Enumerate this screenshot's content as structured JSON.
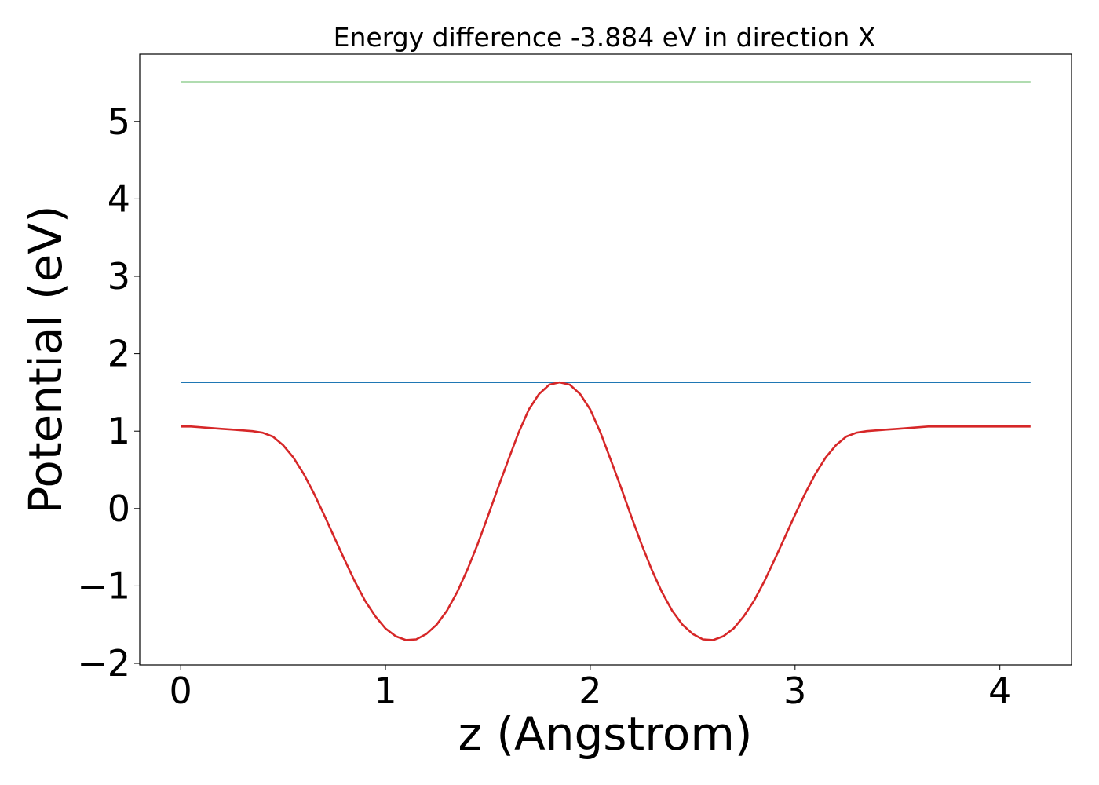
{
  "chart_data": {
    "type": "line",
    "title": "Energy difference -3.884 eV in direction X",
    "xlabel": "z (Angstrom)",
    "ylabel": "Potential (eV)",
    "xlim": [
      -0.2,
      4.35
    ],
    "ylim": [
      -2.02,
      5.87
    ],
    "x_ticks": [
      0,
      1,
      2,
      3,
      4
    ],
    "y_ticks": [
      -2,
      -1,
      0,
      1,
      2,
      3,
      4,
      5
    ],
    "x_tick_labels": [
      "0",
      "1",
      "2",
      "3",
      "4"
    ],
    "y_tick_labels": [
      "−2",
      "−1",
      "0",
      "1",
      "2",
      "3",
      "4",
      "5"
    ],
    "grid": false,
    "series": [
      {
        "color": "#2ca02c",
        "x": [
          0,
          4.15
        ],
        "y": [
          5.51,
          5.51
        ]
      },
      {
        "color": "#1f77b4",
        "x": [
          0,
          4.15
        ],
        "y": [
          1.63,
          1.63
        ]
      },
      {
        "color": "#d62728",
        "x": [
          0,
          0.05,
          0.1,
          0.15,
          0.2,
          0.25,
          0.3,
          0.35,
          0.4,
          0.45,
          0.5,
          0.55,
          0.6,
          0.65,
          0.7,
          0.75,
          0.8,
          0.85,
          0.9,
          0.95,
          1.0,
          1.05,
          1.1,
          1.15,
          1.2,
          1.25,
          1.3,
          1.35,
          1.4,
          1.45,
          1.5,
          1.55,
          1.6,
          1.65,
          1.7,
          1.75,
          1.8,
          1.85,
          1.9,
          1.95,
          2.0,
          2.05,
          2.1,
          2.15,
          2.2,
          2.25,
          2.3,
          2.35,
          2.4,
          2.45,
          2.5,
          2.55,
          2.6,
          2.65,
          2.7,
          2.75,
          2.8,
          2.85,
          2.9,
          2.95,
          3.0,
          3.05,
          3.1,
          3.15,
          3.2,
          3.25,
          3.3,
          3.35,
          3.4,
          3.45,
          3.5,
          3.55,
          3.6,
          3.65,
          3.7,
          3.75,
          3.8,
          3.85,
          3.9,
          3.95,
          4.0,
          4.05,
          4.1,
          4.15
        ],
        "y": [
          1.06,
          1.06,
          1.05,
          1.04,
          1.03,
          1.02,
          1.01,
          1.0,
          0.98,
          0.93,
          0.82,
          0.66,
          0.45,
          0.2,
          -0.08,
          -0.37,
          -0.66,
          -0.94,
          -1.19,
          -1.39,
          -1.55,
          -1.65,
          -1.7,
          -1.69,
          -1.62,
          -1.5,
          -1.32,
          -1.08,
          -0.79,
          -0.46,
          -0.1,
          0.27,
          0.63,
          0.98,
          1.28,
          1.48,
          1.6,
          1.63,
          1.6,
          1.48,
          1.28,
          0.98,
          0.63,
          0.27,
          -0.1,
          -0.46,
          -0.79,
          -1.08,
          -1.32,
          -1.5,
          -1.62,
          -1.69,
          -1.7,
          -1.65,
          -1.55,
          -1.39,
          -1.19,
          -0.94,
          -0.66,
          -0.37,
          -0.08,
          0.2,
          0.45,
          0.66,
          0.82,
          0.93,
          0.98,
          1.0,
          1.01,
          1.02,
          1.03,
          1.04,
          1.05,
          1.06,
          1.06,
          1.06,
          1.06,
          1.06,
          1.06,
          1.06,
          1.06,
          1.06,
          1.06,
          1.06
        ]
      }
    ]
  }
}
